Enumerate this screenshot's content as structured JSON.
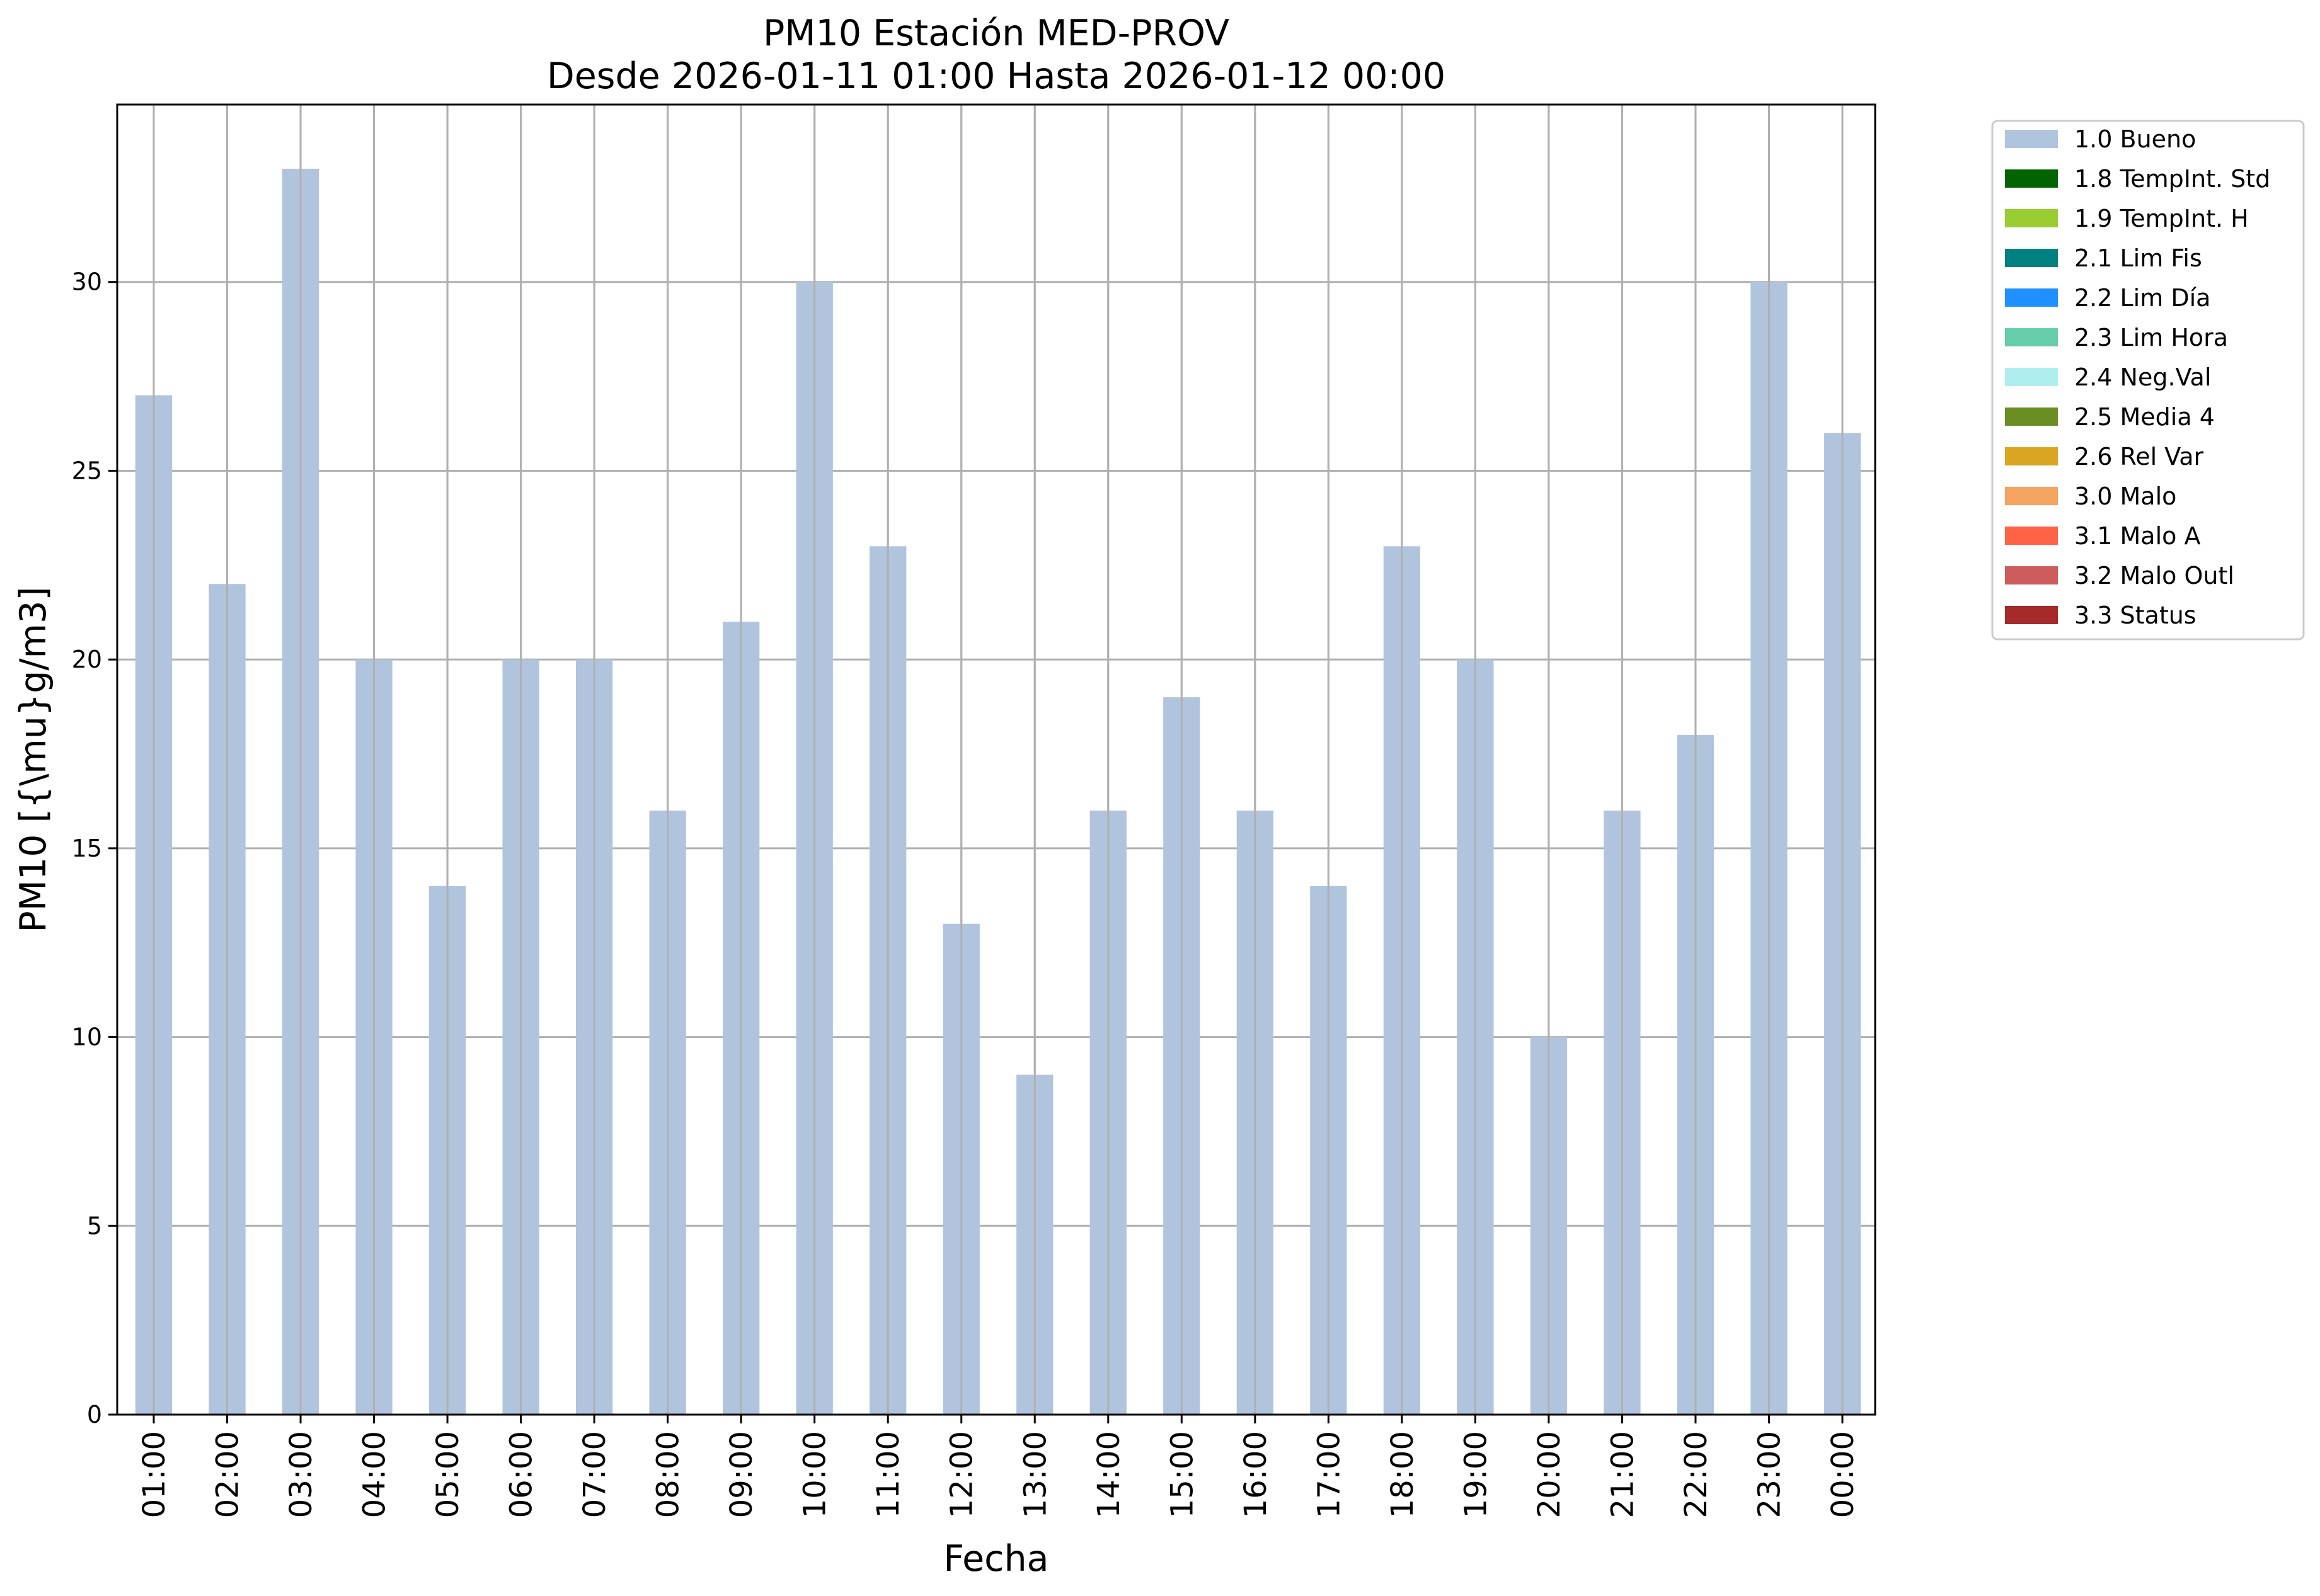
{
  "chart_data": {
    "type": "bar",
    "title": "PM10 Estación MED-PROV",
    "subtitle": "Desde 2026-01-11 01:00 Hasta 2026-01-12 00:00",
    "xlabel": "Fecha",
    "ylabel": "PM10 [{\\mu}g/m3]",
    "categories": [
      "01:00",
      "02:00",
      "03:00",
      "04:00",
      "05:00",
      "06:00",
      "07:00",
      "08:00",
      "09:00",
      "10:00",
      "11:00",
      "12:00",
      "13:00",
      "14:00",
      "15:00",
      "16:00",
      "17:00",
      "18:00",
      "19:00",
      "20:00",
      "21:00",
      "22:00",
      "23:00",
      "00:00"
    ],
    "series": [
      {
        "name": "1.0 Bueno",
        "color": "#b0c4de",
        "values": [
          27,
          22,
          33,
          20,
          14,
          20,
          20,
          16,
          21,
          30,
          23,
          13,
          9,
          16,
          19,
          16,
          14,
          23,
          20,
          10,
          16,
          18,
          30,
          26
        ]
      }
    ],
    "ylim": [
      0,
      34.7
    ],
    "yticks": [
      0,
      5,
      10,
      15,
      20,
      25,
      30
    ],
    "grid": true,
    "legend_position": "outside-top-right",
    "legend": [
      {
        "label": "1.0 Bueno",
        "color": "#b0c4de"
      },
      {
        "label": "1.8 TempInt. Std",
        "color": "#006400"
      },
      {
        "label": "1.9 TempInt. H",
        "color": "#9acd32"
      },
      {
        "label": "2.1 Lim Fis",
        "color": "#008080"
      },
      {
        "label": "2.2 Lim Día",
        "color": "#1e90ff"
      },
      {
        "label": "2.3 Lim Hora",
        "color": "#66cdaa"
      },
      {
        "label": "2.4 Neg.Val",
        "color": "#afeeee"
      },
      {
        "label": "2.5 Media 4",
        "color": "#6b8e23"
      },
      {
        "label": "2.6 Rel Var",
        "color": "#daa520"
      },
      {
        "label": "3.0 Malo",
        "color": "#f4a460"
      },
      {
        "label": "3.1 Malo A",
        "color": "#ff6347"
      },
      {
        "label": "3.2 Malo Outl",
        "color": "#cd5c5c"
      },
      {
        "label": "3.3 Status",
        "color": "#a52a2a"
      }
    ]
  }
}
